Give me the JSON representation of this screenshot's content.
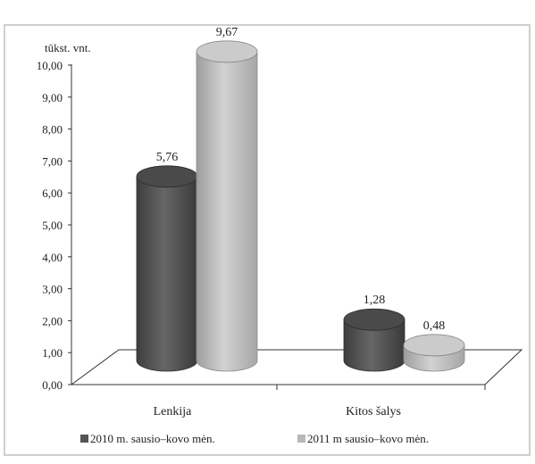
{
  "chart_data": {
    "type": "bar",
    "title": "",
    "xlabel": "",
    "ylabel": "tūkst. vnt.",
    "ylim": [
      0,
      10
    ],
    "y_ticks": [
      "0,00",
      "1,00",
      "2,00",
      "3,00",
      "4,00",
      "5,00",
      "6,00",
      "7,00",
      "8,00",
      "9,00",
      "10,00"
    ],
    "categories": [
      "Lenkija",
      "Kitos šalys"
    ],
    "series": [
      {
        "name": "2010 m. sausio–kovo mėn.",
        "values": [
          5.76,
          1.28
        ],
        "labels": [
          "5,76",
          "1,28"
        ],
        "color": "#555555"
      },
      {
        "name": "2011 m sausio–kovo mėn.",
        "values": [
          9.67,
          0.48
        ],
        "labels": [
          "9,67",
          "0,48"
        ],
        "color": "#b8b8b8"
      }
    ],
    "legend_position": "bottom",
    "style": "3d-cylinder",
    "grid": false
  }
}
